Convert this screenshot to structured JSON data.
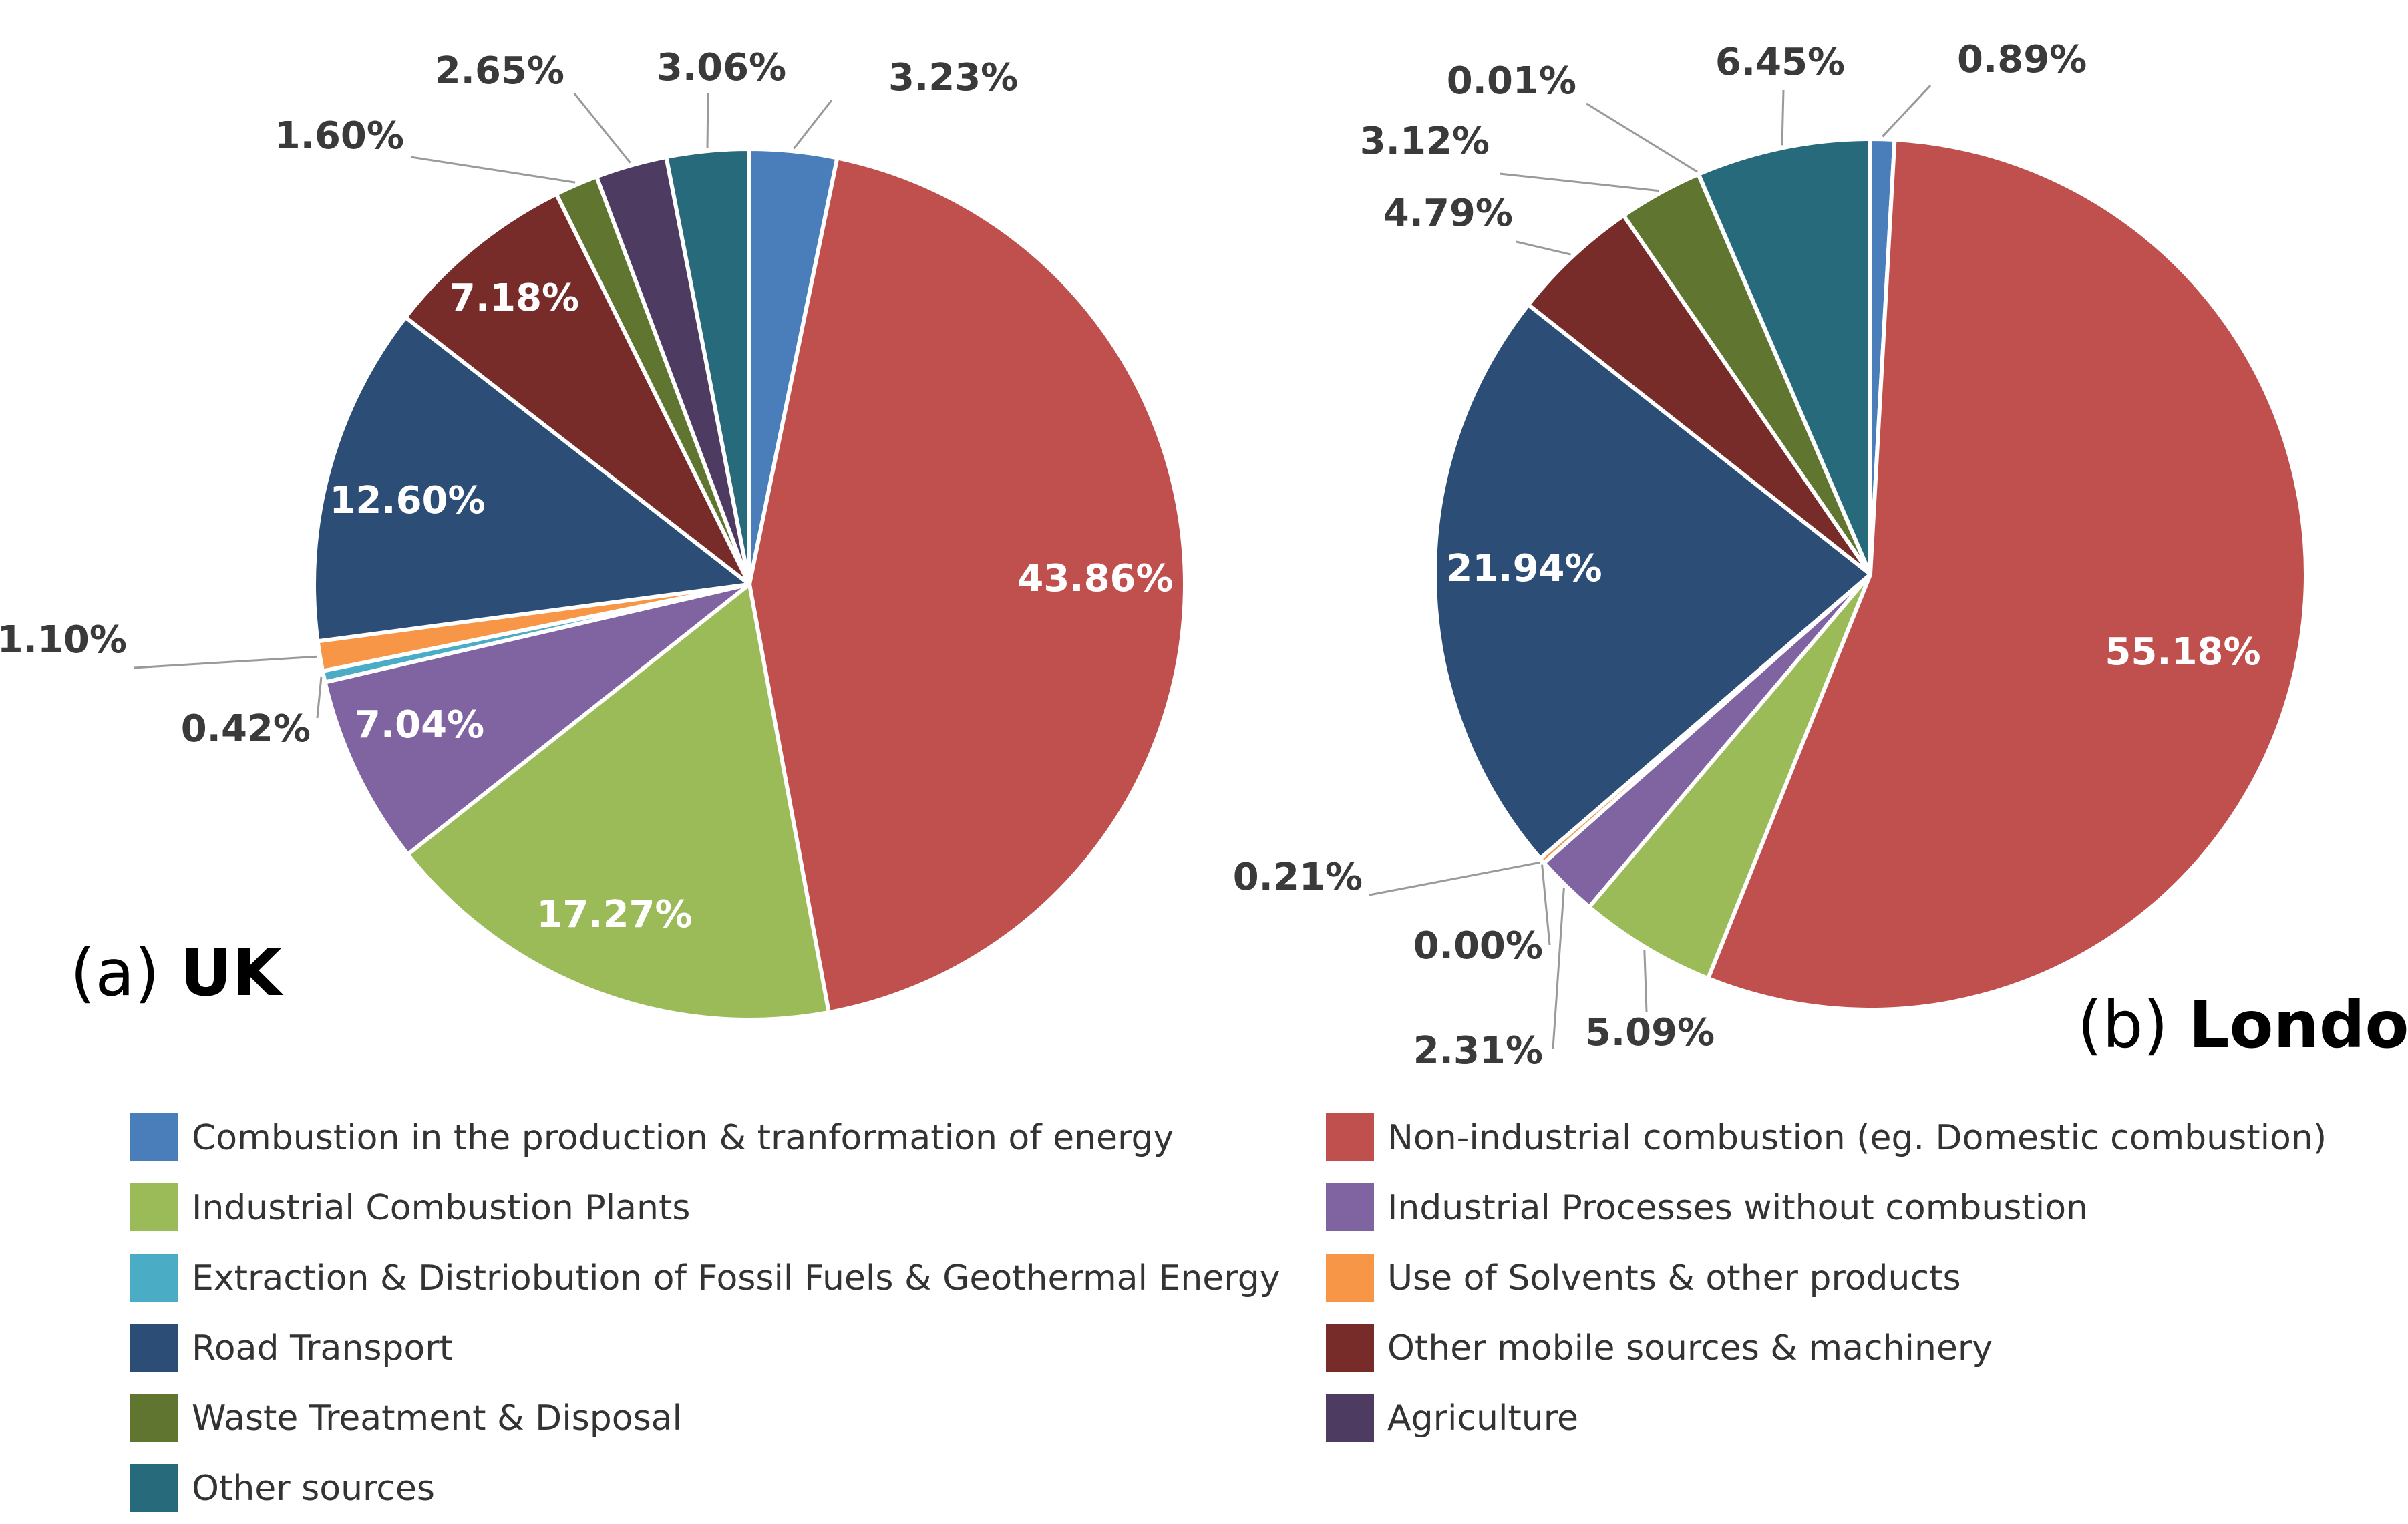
{
  "colors": {
    "combustion_energy": "#4a7ebb",
    "non_industrial": "#c0504d",
    "industrial_plants": "#9bbb59",
    "industrial_processes": "#8064a2",
    "extraction": "#4bacc6",
    "solvents": "#f79646",
    "road_transport": "#2c4d75",
    "other_mobile": "#772c2a",
    "waste": "#5f7530",
    "agriculture": "#4d3b62",
    "other_sources": "#276a7c"
  },
  "chart_data": [
    {
      "type": "pie",
      "caption_prefix": "(a)",
      "caption_bold": "UK",
      "slices": [
        {
          "category": "Combustion in the production & tranformation of energy",
          "key": "combustion_energy",
          "value": 3.23,
          "label": "3.23%"
        },
        {
          "category": "Non-industrial combustion (eg. Domestic combustion)",
          "key": "non_industrial",
          "value": 43.86,
          "label": "43.86%"
        },
        {
          "category": "Industrial Combustion Plants",
          "key": "industrial_plants",
          "value": 17.27,
          "label": "17.27%"
        },
        {
          "category": "Industrial Processes without combustion",
          "key": "industrial_processes",
          "value": 7.04,
          "label": "7.04%"
        },
        {
          "category": "Extraction & Distriobution of Fossil Fuels & Geothermal Energy",
          "key": "extraction",
          "value": 0.42,
          "label": "0.42%"
        },
        {
          "category": "Use of Solvents & other products",
          "key": "solvents",
          "value": 1.1,
          "label": "1.10%"
        },
        {
          "category": "Road Transport",
          "key": "road_transport",
          "value": 12.6,
          "label": "12.60%"
        },
        {
          "category": "Other mobile sources & machinery",
          "key": "other_mobile",
          "value": 7.18,
          "label": "7.18%"
        },
        {
          "category": "Waste Treatment & Disposal",
          "key": "waste",
          "value": 1.6,
          "label": "1.60%"
        },
        {
          "category": "Agriculture",
          "key": "agriculture",
          "value": 2.65,
          "label": "2.65%"
        },
        {
          "category": "Other sources",
          "key": "other_sources",
          "value": 3.06,
          "label": "3.06%"
        }
      ]
    },
    {
      "type": "pie",
      "caption_prefix": "(b)",
      "caption_bold": "London",
      "slices": [
        {
          "category": "Combustion in the production & tranformation of energy",
          "key": "combustion_energy",
          "value": 0.89,
          "label": "0.89%"
        },
        {
          "category": "Non-industrial combustion (eg. Domestic combustion)",
          "key": "non_industrial",
          "value": 55.18,
          "label": "55.18%"
        },
        {
          "category": "Industrial Combustion Plants",
          "key": "industrial_plants",
          "value": 5.09,
          "label": "5.09%"
        },
        {
          "category": "Industrial Processes without combustion",
          "key": "industrial_processes",
          "value": 2.31,
          "label": "2.31%"
        },
        {
          "category": "Extraction & Distriobution of Fossil Fuels & Geothermal Energy",
          "key": "extraction",
          "value": 0.0,
          "label": "0.00%"
        },
        {
          "category": "Use of Solvents & other products",
          "key": "solvents",
          "value": 0.21,
          "label": "0.21%"
        },
        {
          "category": "Road Transport",
          "key": "road_transport",
          "value": 21.94,
          "label": "21.94%"
        },
        {
          "category": "Other mobile sources & machinery",
          "key": "other_mobile",
          "value": 4.79,
          "label": "4.79%"
        },
        {
          "category": "Waste Treatment & Disposal",
          "key": "waste",
          "value": 3.12,
          "label": "3.12%"
        },
        {
          "category": "Agriculture",
          "key": "agriculture",
          "value": 0.01,
          "label": "0.01%"
        },
        {
          "category": "Other sources",
          "key": "other_sources",
          "value": 6.45,
          "label": "6.45%"
        }
      ]
    }
  ],
  "legend": [
    {
      "key": "combustion_energy",
      "label": "Combustion in the production & tranformation of energy"
    },
    {
      "key": "non_industrial",
      "label": "Non-industrial combustion (eg. Domestic combustion)"
    },
    {
      "key": "industrial_plants",
      "label": "Industrial Combustion Plants"
    },
    {
      "key": "industrial_processes",
      "label": "Industrial Processes without combustion"
    },
    {
      "key": "extraction",
      "label": "Extraction & Distriobution of Fossil Fuels & Geothermal Energy"
    },
    {
      "key": "solvents",
      "label": "Use of Solvents & other products"
    },
    {
      "key": "road_transport",
      "label": "Road Transport"
    },
    {
      "key": "other_mobile",
      "label": "Other mobile sources & machinery"
    },
    {
      "key": "waste",
      "label": "Waste Treatment & Disposal"
    },
    {
      "key": "agriculture",
      "label": "Agriculture"
    },
    {
      "key": "other_sources",
      "label": "Other sources"
    }
  ]
}
